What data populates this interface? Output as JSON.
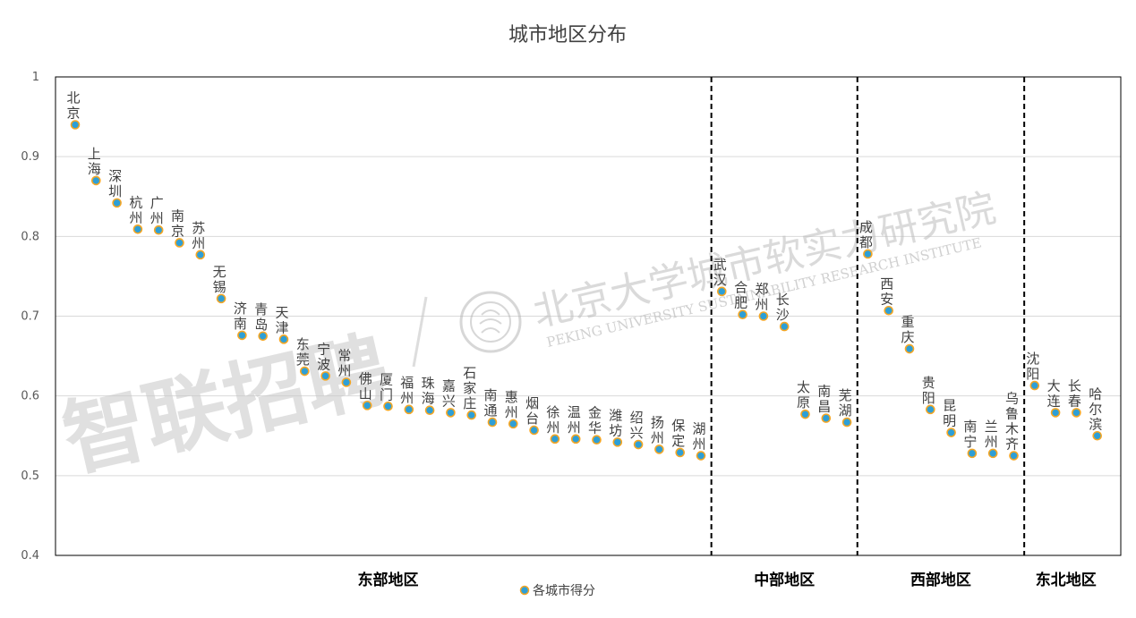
{
  "chart_data": {
    "type": "scatter",
    "title": "城市地区分布",
    "ylim": [
      0.4,
      1
    ],
    "yticks": [
      "0.4",
      "0.5",
      "0.6",
      "0.7",
      "0.8",
      "0.9",
      "1"
    ],
    "grid": true,
    "legend_position": "bottom",
    "series": [
      {
        "name": "各城市得分",
        "color": "#2E9FD6",
        "edge_color": "#F5A623",
        "points": [
          {
            "city": "北京",
            "region": "东部地区",
            "y": 0.94
          },
          {
            "city": "上海",
            "region": "东部地区",
            "y": 0.87
          },
          {
            "city": "深圳",
            "region": "东部地区",
            "y": 0.842
          },
          {
            "city": "杭州",
            "region": "东部地区",
            "y": 0.809
          },
          {
            "city": "广州",
            "region": "东部地区",
            "y": 0.808
          },
          {
            "city": "南京",
            "region": "东部地区",
            "y": 0.792
          },
          {
            "city": "苏州",
            "region": "东部地区",
            "y": 0.777
          },
          {
            "city": "无锡",
            "region": "东部地区",
            "y": 0.722
          },
          {
            "city": "济南",
            "region": "东部地区",
            "y": 0.676
          },
          {
            "city": "青岛",
            "region": "东部地区",
            "y": 0.675
          },
          {
            "city": "天津",
            "region": "东部地区",
            "y": 0.671
          },
          {
            "city": "东莞",
            "region": "东部地区",
            "y": 0.631
          },
          {
            "city": "宁波",
            "region": "东部地区",
            "y": 0.625
          },
          {
            "city": "常州",
            "region": "东部地区",
            "y": 0.617
          },
          {
            "city": "佛山",
            "region": "东部地区",
            "y": 0.588
          },
          {
            "city": "厦门",
            "region": "东部地区",
            "y": 0.587
          },
          {
            "city": "福州",
            "region": "东部地区",
            "y": 0.583
          },
          {
            "city": "珠海",
            "region": "东部地区",
            "y": 0.582
          },
          {
            "city": "嘉兴",
            "region": "东部地区",
            "y": 0.579
          },
          {
            "city": "石家庄",
            "region": "东部地区",
            "y": 0.576
          },
          {
            "city": "南通",
            "region": "东部地区",
            "y": 0.567
          },
          {
            "city": "惠州",
            "region": "东部地区",
            "y": 0.565
          },
          {
            "city": "烟台",
            "region": "东部地区",
            "y": 0.557
          },
          {
            "city": "徐州",
            "region": "东部地区",
            "y": 0.546
          },
          {
            "city": "温州",
            "region": "东部地区",
            "y": 0.546
          },
          {
            "city": "金华",
            "region": "东部地区",
            "y": 0.545
          },
          {
            "city": "潍坊",
            "region": "东部地区",
            "y": 0.542
          },
          {
            "city": "绍兴",
            "region": "东部地区",
            "y": 0.539
          },
          {
            "city": "扬州",
            "region": "东部地区",
            "y": 0.533
          },
          {
            "city": "保定",
            "region": "东部地区",
            "y": 0.529
          },
          {
            "city": "湖州",
            "region": "东部地区",
            "y": 0.525
          },
          {
            "city": "武汉",
            "region": "中部地区",
            "y": 0.731
          },
          {
            "city": "合肥",
            "region": "中部地区",
            "y": 0.702
          },
          {
            "city": "郑州",
            "region": "中部地区",
            "y": 0.7
          },
          {
            "city": "长沙",
            "region": "中部地区",
            "y": 0.687
          },
          {
            "city": "太原",
            "region": "中部地区",
            "y": 0.577
          },
          {
            "city": "南昌",
            "region": "中部地区",
            "y": 0.572
          },
          {
            "city": "芜湖",
            "region": "中部地区",
            "y": 0.567
          },
          {
            "city": "成都",
            "region": "西部地区",
            "y": 0.778
          },
          {
            "city": "西安",
            "region": "西部地区",
            "y": 0.707
          },
          {
            "city": "重庆",
            "region": "西部地区",
            "y": 0.659
          },
          {
            "city": "贵阳",
            "region": "西部地区",
            "y": 0.583
          },
          {
            "city": "昆明",
            "region": "西部地区",
            "y": 0.554
          },
          {
            "city": "南宁",
            "region": "西部地区",
            "y": 0.528
          },
          {
            "city": "兰州",
            "region": "西部地区",
            "y": 0.528
          },
          {
            "city": "乌鲁木齐",
            "region": "西部地区",
            "y": 0.525
          },
          {
            "city": "沈阳",
            "region": "东北地区",
            "y": 0.613
          },
          {
            "city": "大连",
            "region": "东北地区",
            "y": 0.579
          },
          {
            "city": "长春",
            "region": "东北地区",
            "y": 0.579
          },
          {
            "city": "哈尔滨",
            "region": "东北地区",
            "y": 0.55
          }
        ]
      }
    ],
    "regions": [
      "东部地区",
      "中部地区",
      "西部地区",
      "东北地区"
    ],
    "region_separator": "dashed"
  },
  "watermarks": {
    "zhaopin": "智联招聘",
    "pku": "北京大学城市软实力研究院",
    "pku_en": "PEKING UNIVERSITY SUSTAINABILITY RESEARCH INSTITUTE"
  }
}
